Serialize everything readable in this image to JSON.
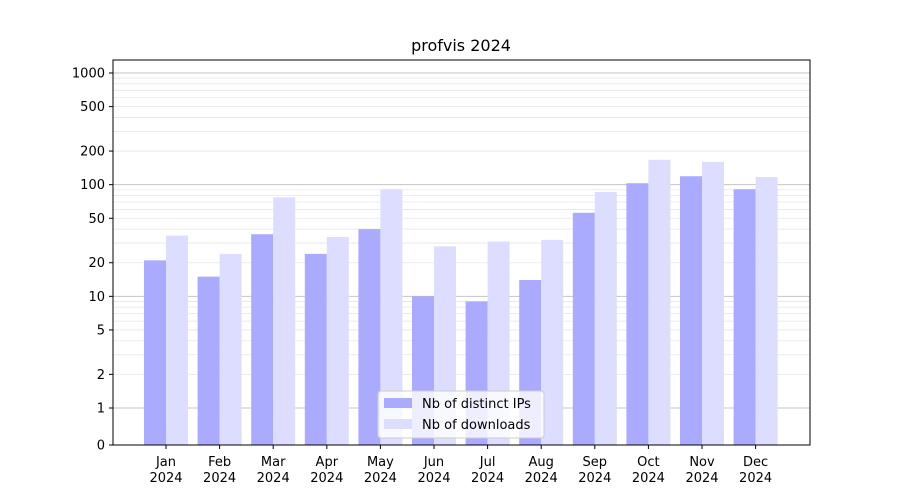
{
  "chart_data": {
    "type": "bar",
    "title": "profvis 2024",
    "xlabel": "",
    "ylabel": "",
    "scale": "symlog",
    "ylim": [
      0,
      1200
    ],
    "yticks": [
      0,
      1,
      2,
      5,
      10,
      20,
      50,
      100,
      200,
      500,
      1000
    ],
    "categories": [
      {
        "month": "Jan",
        "year": "2024"
      },
      {
        "month": "Feb",
        "year": "2024"
      },
      {
        "month": "Mar",
        "year": "2024"
      },
      {
        "month": "Apr",
        "year": "2024"
      },
      {
        "month": "May",
        "year": "2024"
      },
      {
        "month": "Jun",
        "year": "2024"
      },
      {
        "month": "Jul",
        "year": "2024"
      },
      {
        "month": "Aug",
        "year": "2024"
      },
      {
        "month": "Sep",
        "year": "2024"
      },
      {
        "month": "Oct",
        "year": "2024"
      },
      {
        "month": "Nov",
        "year": "2024"
      },
      {
        "month": "Dec",
        "year": "2024"
      }
    ],
    "series": [
      {
        "name": "Nb of distinct IPs",
        "color": "#aaaaff",
        "values": [
          21,
          15,
          36,
          24,
          40,
          10,
          9,
          14,
          56,
          103,
          119,
          91
        ]
      },
      {
        "name": "Nb of downloads",
        "color": "#ddddff",
        "values": [
          35,
          24,
          77,
          34,
          91,
          28,
          31,
          32,
          86,
          167,
          160,
          117
        ]
      }
    ],
    "grid": true,
    "legend_position": "bottom-center"
  }
}
